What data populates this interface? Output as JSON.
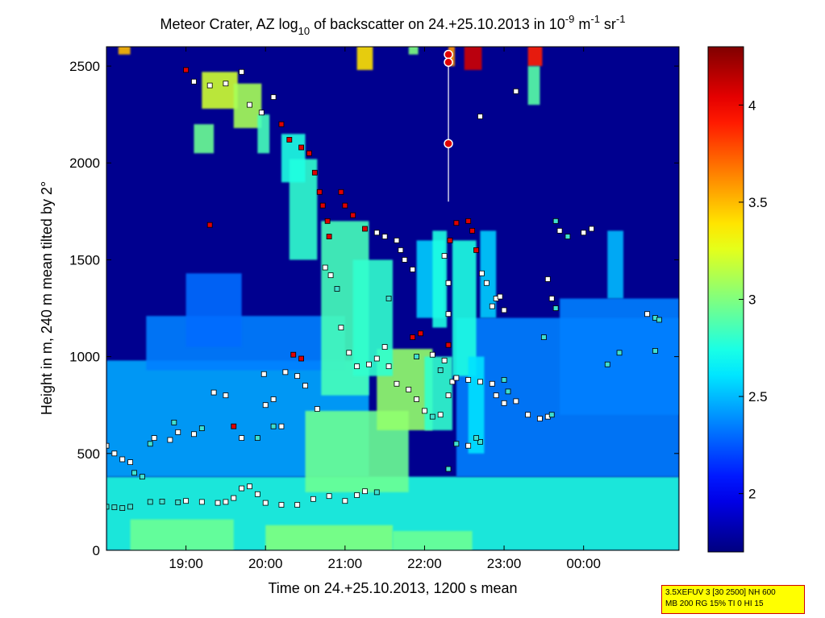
{
  "chart_data": {
    "type": "heatmap",
    "title": {
      "main": "Meteor Crater, AZ log",
      "sub10": "10",
      "mid": " of backscatter on 24.+25.10.2013 in 10",
      "supA": "-9",
      "unitA": " m",
      "supB": "-1",
      "unitB": " sr",
      "supC": "-1"
    },
    "xlabel": "Time on 24.+25.10.2013, 1200 s mean",
    "ylabel": "Height in m, 240 m mean tilted by 2°",
    "x_range_hours": [
      18.0,
      25.2
    ],
    "y_range_m": [
      0,
      2600
    ],
    "x_ticks": [
      {
        "value": 19,
        "label": "19:00"
      },
      {
        "value": 20,
        "label": "20:00"
      },
      {
        "value": 21,
        "label": "21:00"
      },
      {
        "value": 22,
        "label": "22:00"
      },
      {
        "value": 23,
        "label": "23:00"
      },
      {
        "value": 24,
        "label": "00:00"
      }
    ],
    "y_ticks": [
      {
        "value": 0,
        "label": "0"
      },
      {
        "value": 500,
        "label": "500"
      },
      {
        "value": 1000,
        "label": "1000"
      },
      {
        "value": 1500,
        "label": "1500"
      },
      {
        "value": 2000,
        "label": "2000"
      },
      {
        "value": 2500,
        "label": "2500"
      }
    ],
    "colorbar": {
      "range": [
        1.7,
        4.3
      ],
      "ticks": [
        {
          "value": 2,
          "label": "2"
        },
        {
          "value": 2.5,
          "label": "2.5"
        },
        {
          "value": 3,
          "label": "3"
        },
        {
          "value": 3.5,
          "label": "3.5"
        },
        {
          "value": 4,
          "label": "4"
        }
      ],
      "colormap": "jet"
    },
    "background_value": 1.75,
    "features": [
      {
        "tx": 18.0,
        "ty": 0,
        "hx": 7.2,
        "hy": 380,
        "v": 2.75
      },
      {
        "tx": 18.3,
        "ty": 0,
        "hx": 1.3,
        "hy": 160,
        "v": 2.95
      },
      {
        "tx": 20.0,
        "ty": 0,
        "hx": 1.6,
        "hy": 130,
        "v": 3.0
      },
      {
        "tx": 21.6,
        "ty": 0,
        "hx": 1.0,
        "hy": 100,
        "v": 2.95
      },
      {
        "tx": 18.0,
        "ty": 380,
        "hx": 3.3,
        "hy": 600,
        "v": 2.45
      },
      {
        "tx": 18.5,
        "ty": 930,
        "hx": 2.5,
        "hy": 280,
        "v": 2.35
      },
      {
        "tx": 22.4,
        "ty": 380,
        "hx": 2.8,
        "hy": 820,
        "v": 2.35
      },
      {
        "tx": 23.7,
        "ty": 700,
        "hx": 1.5,
        "hy": 600,
        "v": 2.35
      },
      {
        "tx": 19.0,
        "ty": 1050,
        "hx": 0.7,
        "hy": 380,
        "v": 2.3
      },
      {
        "tx": 20.5,
        "ty": 300,
        "hx": 1.3,
        "hy": 420,
        "v": 2.95
      },
      {
        "tx": 20.7,
        "ty": 800,
        "hx": 0.6,
        "hy": 900,
        "v": 2.85
      },
      {
        "tx": 21.4,
        "ty": 620,
        "hx": 0.7,
        "hy": 420,
        "v": 3.05
      },
      {
        "tx": 21.1,
        "ty": 900,
        "hx": 0.5,
        "hy": 600,
        "v": 2.8
      },
      {
        "tx": 20.3,
        "ty": 1500,
        "hx": 0.35,
        "hy": 520,
        "v": 2.8
      },
      {
        "tx": 20.2,
        "ty": 1900,
        "hx": 0.3,
        "hy": 250,
        "v": 2.75
      },
      {
        "tx": 21.9,
        "ty": 1200,
        "hx": 0.35,
        "hy": 400,
        "v": 2.55
      },
      {
        "tx": 22.0,
        "ty": 620,
        "hx": 0.35,
        "hy": 380,
        "v": 2.8
      },
      {
        "tx": 22.1,
        "ty": 1150,
        "hx": 0.18,
        "hy": 500,
        "v": 2.75
      },
      {
        "tx": 22.35,
        "ty": 900,
        "hx": 0.3,
        "hy": 700,
        "v": 2.75
      },
      {
        "tx": 22.55,
        "ty": 500,
        "hx": 0.2,
        "hy": 500,
        "v": 2.6
      },
      {
        "tx": 22.7,
        "ty": 1200,
        "hx": 0.2,
        "hy": 450,
        "v": 2.55
      },
      {
        "tx": 24.3,
        "ty": 1300,
        "hx": 0.2,
        "hy": 350,
        "v": 2.5
      },
      {
        "tx": 19.2,
        "ty": 2280,
        "hx": 0.45,
        "hy": 190,
        "v": 3.2
      },
      {
        "tx": 19.6,
        "ty": 2180,
        "hx": 0.35,
        "hy": 230,
        "v": 3.1
      },
      {
        "tx": 19.1,
        "ty": 2050,
        "hx": 0.25,
        "hy": 150,
        "v": 2.95
      },
      {
        "tx": 19.9,
        "ty": 2050,
        "hx": 0.15,
        "hy": 200,
        "v": 2.85
      },
      {
        "tx": 18.15,
        "ty": 2560,
        "hx": 0.15,
        "hy": 70,
        "v": 3.5
      },
      {
        "tx": 21.15,
        "ty": 2480,
        "hx": 0.2,
        "hy": 140,
        "v": 3.4
      },
      {
        "tx": 21.8,
        "ty": 2560,
        "hx": 0.12,
        "hy": 70,
        "v": 3.0
      },
      {
        "tx": 22.3,
        "ty": 2500,
        "hx": 0.08,
        "hy": 120,
        "v": 3.6
      },
      {
        "tx": 22.5,
        "ty": 2480,
        "hx": 0.22,
        "hy": 150,
        "v": 4.1
      },
      {
        "tx": 23.3,
        "ty": 2500,
        "hx": 0.18,
        "hy": 130,
        "v": 3.9
      },
      {
        "tx": 23.3,
        "ty": 2300,
        "hx": 0.15,
        "hy": 200,
        "v": 2.9
      }
    ],
    "points": [
      [
        18.0,
        225,
        "c"
      ],
      [
        18.1,
        222,
        "c"
      ],
      [
        18.2,
        218,
        "c"
      ],
      [
        18.3,
        225,
        "c"
      ],
      [
        18.55,
        250,
        "c"
      ],
      [
        18.7,
        252,
        "c"
      ],
      [
        18.9,
        248,
        "c"
      ],
      [
        19.0,
        255,
        "w"
      ],
      [
        19.2,
        250,
        "w"
      ],
      [
        19.4,
        245,
        "w"
      ],
      [
        19.5,
        250,
        "w"
      ],
      [
        19.6,
        270,
        "w"
      ],
      [
        19.7,
        320,
        "w"
      ],
      [
        19.8,
        330,
        "w"
      ],
      [
        19.9,
        290,
        "w"
      ],
      [
        20.0,
        245,
        "w"
      ],
      [
        20.2,
        235,
        "w"
      ],
      [
        20.4,
        235,
        "w"
      ],
      [
        20.6,
        265,
        "w"
      ],
      [
        20.8,
        280,
        "w"
      ],
      [
        21.0,
        255,
        "w"
      ],
      [
        21.15,
        285,
        "w"
      ],
      [
        21.25,
        305,
        "w"
      ],
      [
        21.4,
        300,
        "c"
      ],
      [
        18.0,
        540,
        "w"
      ],
      [
        18.1,
        500,
        "w"
      ],
      [
        18.2,
        470,
        "w"
      ],
      [
        18.3,
        455,
        "w"
      ],
      [
        18.35,
        400,
        "c"
      ],
      [
        18.45,
        380,
        "c"
      ],
      [
        18.55,
        550,
        "c"
      ],
      [
        18.6,
        580,
        "w"
      ],
      [
        18.8,
        570,
        "w"
      ],
      [
        18.9,
        610,
        "w"
      ],
      [
        19.1,
        600,
        "w"
      ],
      [
        19.2,
        630,
        "c"
      ],
      [
        18.85,
        660,
        "c"
      ],
      [
        19.35,
        815,
        "w"
      ],
      [
        19.5,
        800,
        "w"
      ],
      [
        19.7,
        580,
        "w"
      ],
      [
        19.9,
        580,
        "c"
      ],
      [
        19.6,
        640,
        "r"
      ],
      [
        20.0,
        750,
        "w"
      ],
      [
        20.1,
        780,
        "w"
      ],
      [
        20.25,
        920,
        "w"
      ],
      [
        20.4,
        900,
        "w"
      ],
      [
        20.5,
        850,
        "w"
      ],
      [
        20.65,
        730,
        "w"
      ],
      [
        20.1,
        640,
        "c"
      ],
      [
        20.2,
        640,
        "w"
      ],
      [
        19.98,
        910,
        "w"
      ],
      [
        20.35,
        1010,
        "r"
      ],
      [
        20.45,
        990,
        "r"
      ],
      [
        19.3,
        1680,
        "r"
      ],
      [
        19.0,
        2480,
        "r"
      ],
      [
        19.1,
        2420,
        "w"
      ],
      [
        19.3,
        2400,
        "w"
      ],
      [
        19.5,
        2410,
        "w"
      ],
      [
        19.7,
        2470,
        "w"
      ],
      [
        19.8,
        2300,
        "w"
      ],
      [
        19.95,
        2260,
        "w"
      ],
      [
        20.1,
        2340,
        "w"
      ],
      [
        20.2,
        2200,
        "r"
      ],
      [
        20.3,
        2120,
        "r"
      ],
      [
        20.45,
        2080,
        "r"
      ],
      [
        20.55,
        2050,
        "r"
      ],
      [
        20.62,
        1950,
        "r"
      ],
      [
        20.68,
        1850,
        "r"
      ],
      [
        20.72,
        1780,
        "r"
      ],
      [
        20.78,
        1700,
        "r"
      ],
      [
        20.8,
        1620,
        "r"
      ],
      [
        20.75,
        1460,
        "w"
      ],
      [
        20.82,
        1420,
        "w"
      ],
      [
        20.9,
        1350,
        "c"
      ],
      [
        20.95,
        1150,
        "w"
      ],
      [
        21.05,
        1020,
        "w"
      ],
      [
        21.15,
        950,
        "w"
      ],
      [
        21.3,
        960,
        "w"
      ],
      [
        21.4,
        990,
        "w"
      ],
      [
        21.5,
        1050,
        "w"
      ],
      [
        21.55,
        1300,
        "c"
      ],
      [
        21.55,
        950,
        "w"
      ],
      [
        21.65,
        860,
        "w"
      ],
      [
        21.8,
        830,
        "w"
      ],
      [
        21.9,
        780,
        "w"
      ],
      [
        22.0,
        720,
        "w"
      ],
      [
        22.1,
        690,
        "c"
      ],
      [
        22.2,
        700,
        "w"
      ],
      [
        22.3,
        800,
        "w"
      ],
      [
        22.35,
        870,
        "w"
      ],
      [
        22.25,
        980,
        "w"
      ],
      [
        22.1,
        1010,
        "w"
      ],
      [
        21.9,
        1000,
        "c"
      ],
      [
        21.85,
        1100,
        "r"
      ],
      [
        21.95,
        1120,
        "r"
      ],
      [
        20.95,
        1850,
        "r"
      ],
      [
        21.0,
        1780,
        "r"
      ],
      [
        21.1,
        1730,
        "r"
      ],
      [
        21.25,
        1660,
        "r"
      ],
      [
        21.4,
        1640,
        "w"
      ],
      [
        21.5,
        1620,
        "w"
      ],
      [
        21.65,
        1600,
        "w"
      ],
      [
        21.75,
        1500,
        "w"
      ],
      [
        21.85,
        1450,
        "w"
      ],
      [
        21.7,
        1550,
        "w"
      ],
      [
        22.25,
        1520,
        "w"
      ],
      [
        22.32,
        1600,
        "r"
      ],
      [
        22.4,
        1690,
        "r"
      ],
      [
        22.55,
        1700,
        "r"
      ],
      [
        22.6,
        1650,
        "r"
      ],
      [
        22.65,
        1550,
        "r"
      ],
      [
        22.72,
        1430,
        "w"
      ],
      [
        22.78,
        1380,
        "w"
      ],
      [
        22.85,
        1260,
        "w"
      ],
      [
        22.9,
        1300,
        "w"
      ],
      [
        22.3,
        1380,
        "w"
      ],
      [
        22.3,
        1060,
        "r"
      ],
      [
        22.3,
        1220,
        "w"
      ],
      [
        22.2,
        930,
        "c"
      ],
      [
        22.4,
        890,
        "w"
      ],
      [
        22.55,
        880,
        "w"
      ],
      [
        22.7,
        870,
        "w"
      ],
      [
        22.85,
        860,
        "w"
      ],
      [
        23.0,
        880,
        "c"
      ],
      [
        22.4,
        550,
        "c"
      ],
      [
        22.55,
        540,
        "w"
      ],
      [
        22.7,
        560,
        "c"
      ],
      [
        22.65,
        580,
        "c"
      ],
      [
        22.3,
        420,
        "c"
      ],
      [
        23.0,
        760,
        "w"
      ],
      [
        23.15,
        770,
        "w"
      ],
      [
        23.3,
        700,
        "w"
      ],
      [
        23.45,
        680,
        "w"
      ],
      [
        23.55,
        690,
        "w"
      ],
      [
        23.6,
        700,
        "c"
      ],
      [
        22.9,
        800,
        "w"
      ],
      [
        23.05,
        820,
        "c"
      ],
      [
        22.7,
        2240,
        "w"
      ],
      [
        23.15,
        2370,
        "w"
      ],
      [
        23.55,
        1400,
        "w"
      ],
      [
        23.6,
        1300,
        "w"
      ],
      [
        23.65,
        1250,
        "c"
      ],
      [
        23.65,
        1700,
        "c"
      ],
      [
        23.8,
        1620,
        "c"
      ],
      [
        24.0,
        1640,
        "w"
      ],
      [
        24.1,
        1660,
        "w"
      ],
      [
        23.5,
        1100,
        "c"
      ],
      [
        23.7,
        1650,
        "w"
      ],
      [
        24.3,
        960,
        "c"
      ],
      [
        24.45,
        1020,
        "c"
      ],
      [
        24.9,
        1030,
        "c"
      ],
      [
        24.9,
        1200,
        "c"
      ],
      [
        24.8,
        1220,
        "w"
      ],
      [
        24.95,
        1190,
        "c"
      ],
      [
        23.0,
        1240,
        "w"
      ],
      [
        22.95,
        1310,
        "w"
      ]
    ],
    "profile": {
      "x": 22.3,
      "y_top": 2560,
      "y_bottom": 1800,
      "markers": [
        2560,
        2520,
        2100
      ]
    }
  },
  "infobox": {
    "line1": "3.5XEFUV 3 [30 2500] NH 600",
    "line2": "MB 200 RG 15% TI 0 HI 15"
  }
}
